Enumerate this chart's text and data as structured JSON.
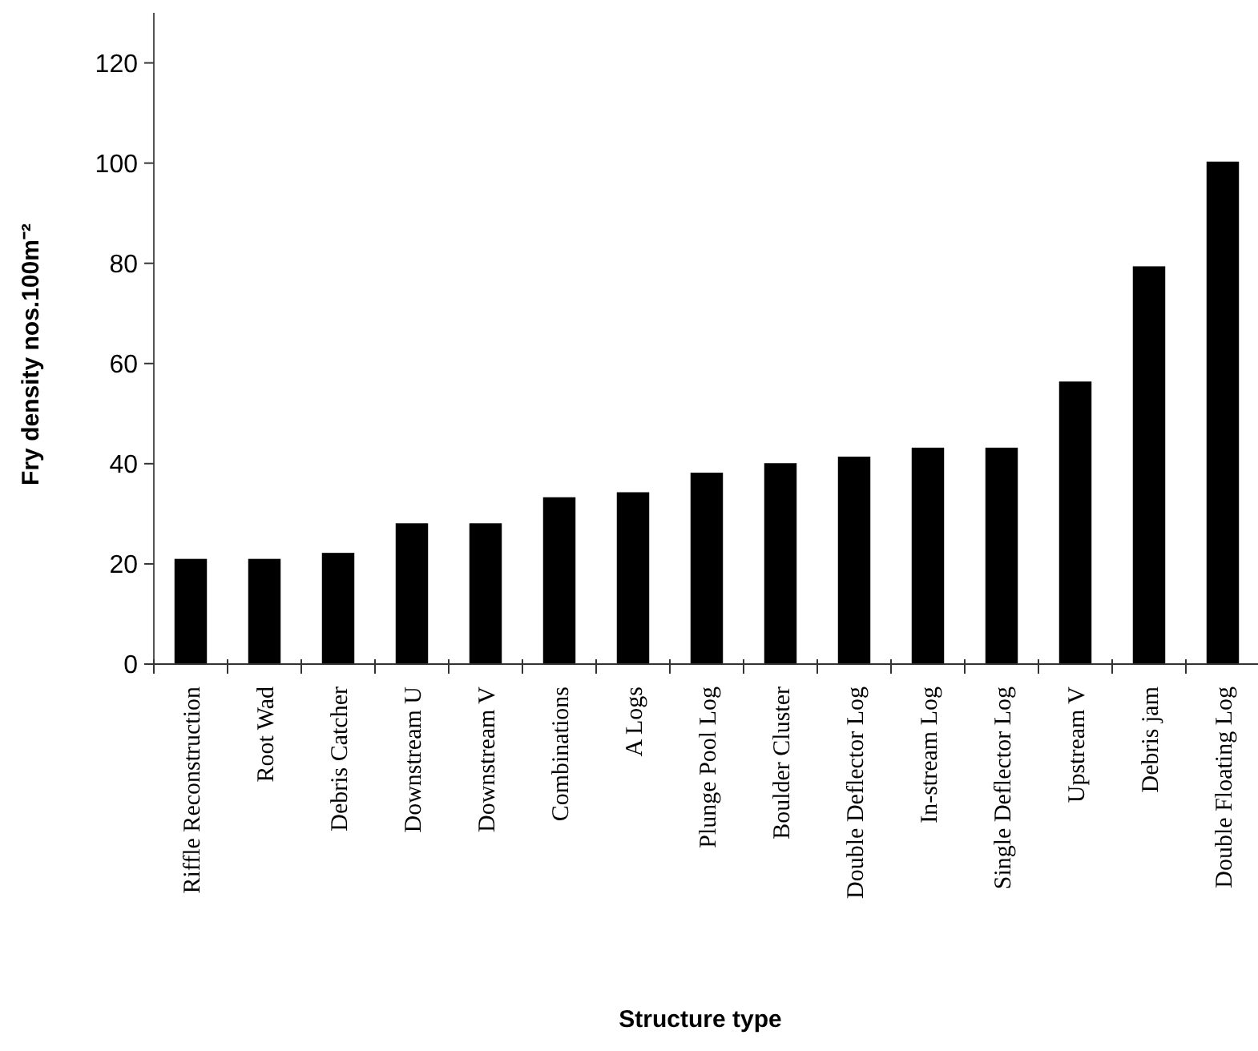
{
  "chart_data": {
    "type": "bar",
    "xlabel": "Structure type",
    "ylabel": "Fry density nos.100m⁻²",
    "categories": [
      "Riffle Reconstruction",
      "Root Wad",
      "Debris Catcher",
      "Downstream U",
      "Downstream V",
      "Combinations",
      "A Logs",
      "Plunge Pool Log",
      "Boulder Cluster",
      "Double Deflector Log",
      "In-stream Log",
      "Single Deflector Log",
      "Upstream V",
      "Debris jam",
      "Double Floating Log"
    ],
    "values": [
      21,
      21,
      22.2,
      28.1,
      28.1,
      33.3,
      34.3,
      38.2,
      40.1,
      41.4,
      43.2,
      43.2,
      56.4,
      79.4,
      100.3
    ],
    "color": "#000000",
    "ylim": [
      0,
      130
    ],
    "yticks": [
      0,
      20,
      40,
      60,
      80,
      100,
      120
    ],
    "grid": false
  }
}
